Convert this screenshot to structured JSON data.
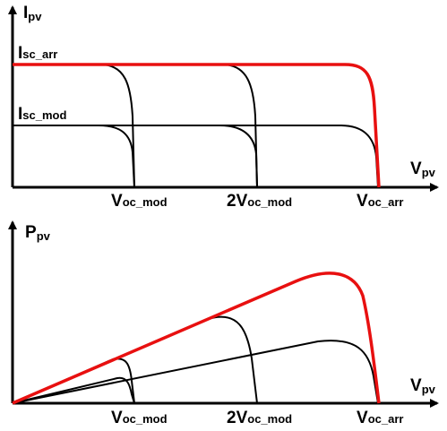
{
  "iv_plot": {
    "y_axis": {
      "main": "I",
      "sub": "pv"
    },
    "x_axis": {
      "main": "V",
      "sub": "pv"
    },
    "isc_arr": {
      "main": "I",
      "sub": "sc_arr"
    },
    "isc_mod": {
      "main": "I",
      "sub": "sc_mod"
    },
    "ticks": [
      {
        "main": "V",
        "sub": "oc_mod"
      },
      {
        "main": "2V",
        "sub": "oc_mod"
      },
      {
        "main": "V",
        "sub": "oc_arr"
      }
    ]
  },
  "pv_plot": {
    "y_axis": {
      "main": "P",
      "sub": "pv"
    },
    "x_axis": {
      "main": "V",
      "sub": "pv"
    },
    "ticks": [
      {
        "main": "V",
        "sub": "oc_mod"
      },
      {
        "main": "2V",
        "sub": "oc_mod"
      },
      {
        "main": "V",
        "sub": "oc_arr"
      }
    ]
  },
  "colors": {
    "array_curve": "#e81010",
    "module_curve": "#000000",
    "axis": "#000000"
  }
}
